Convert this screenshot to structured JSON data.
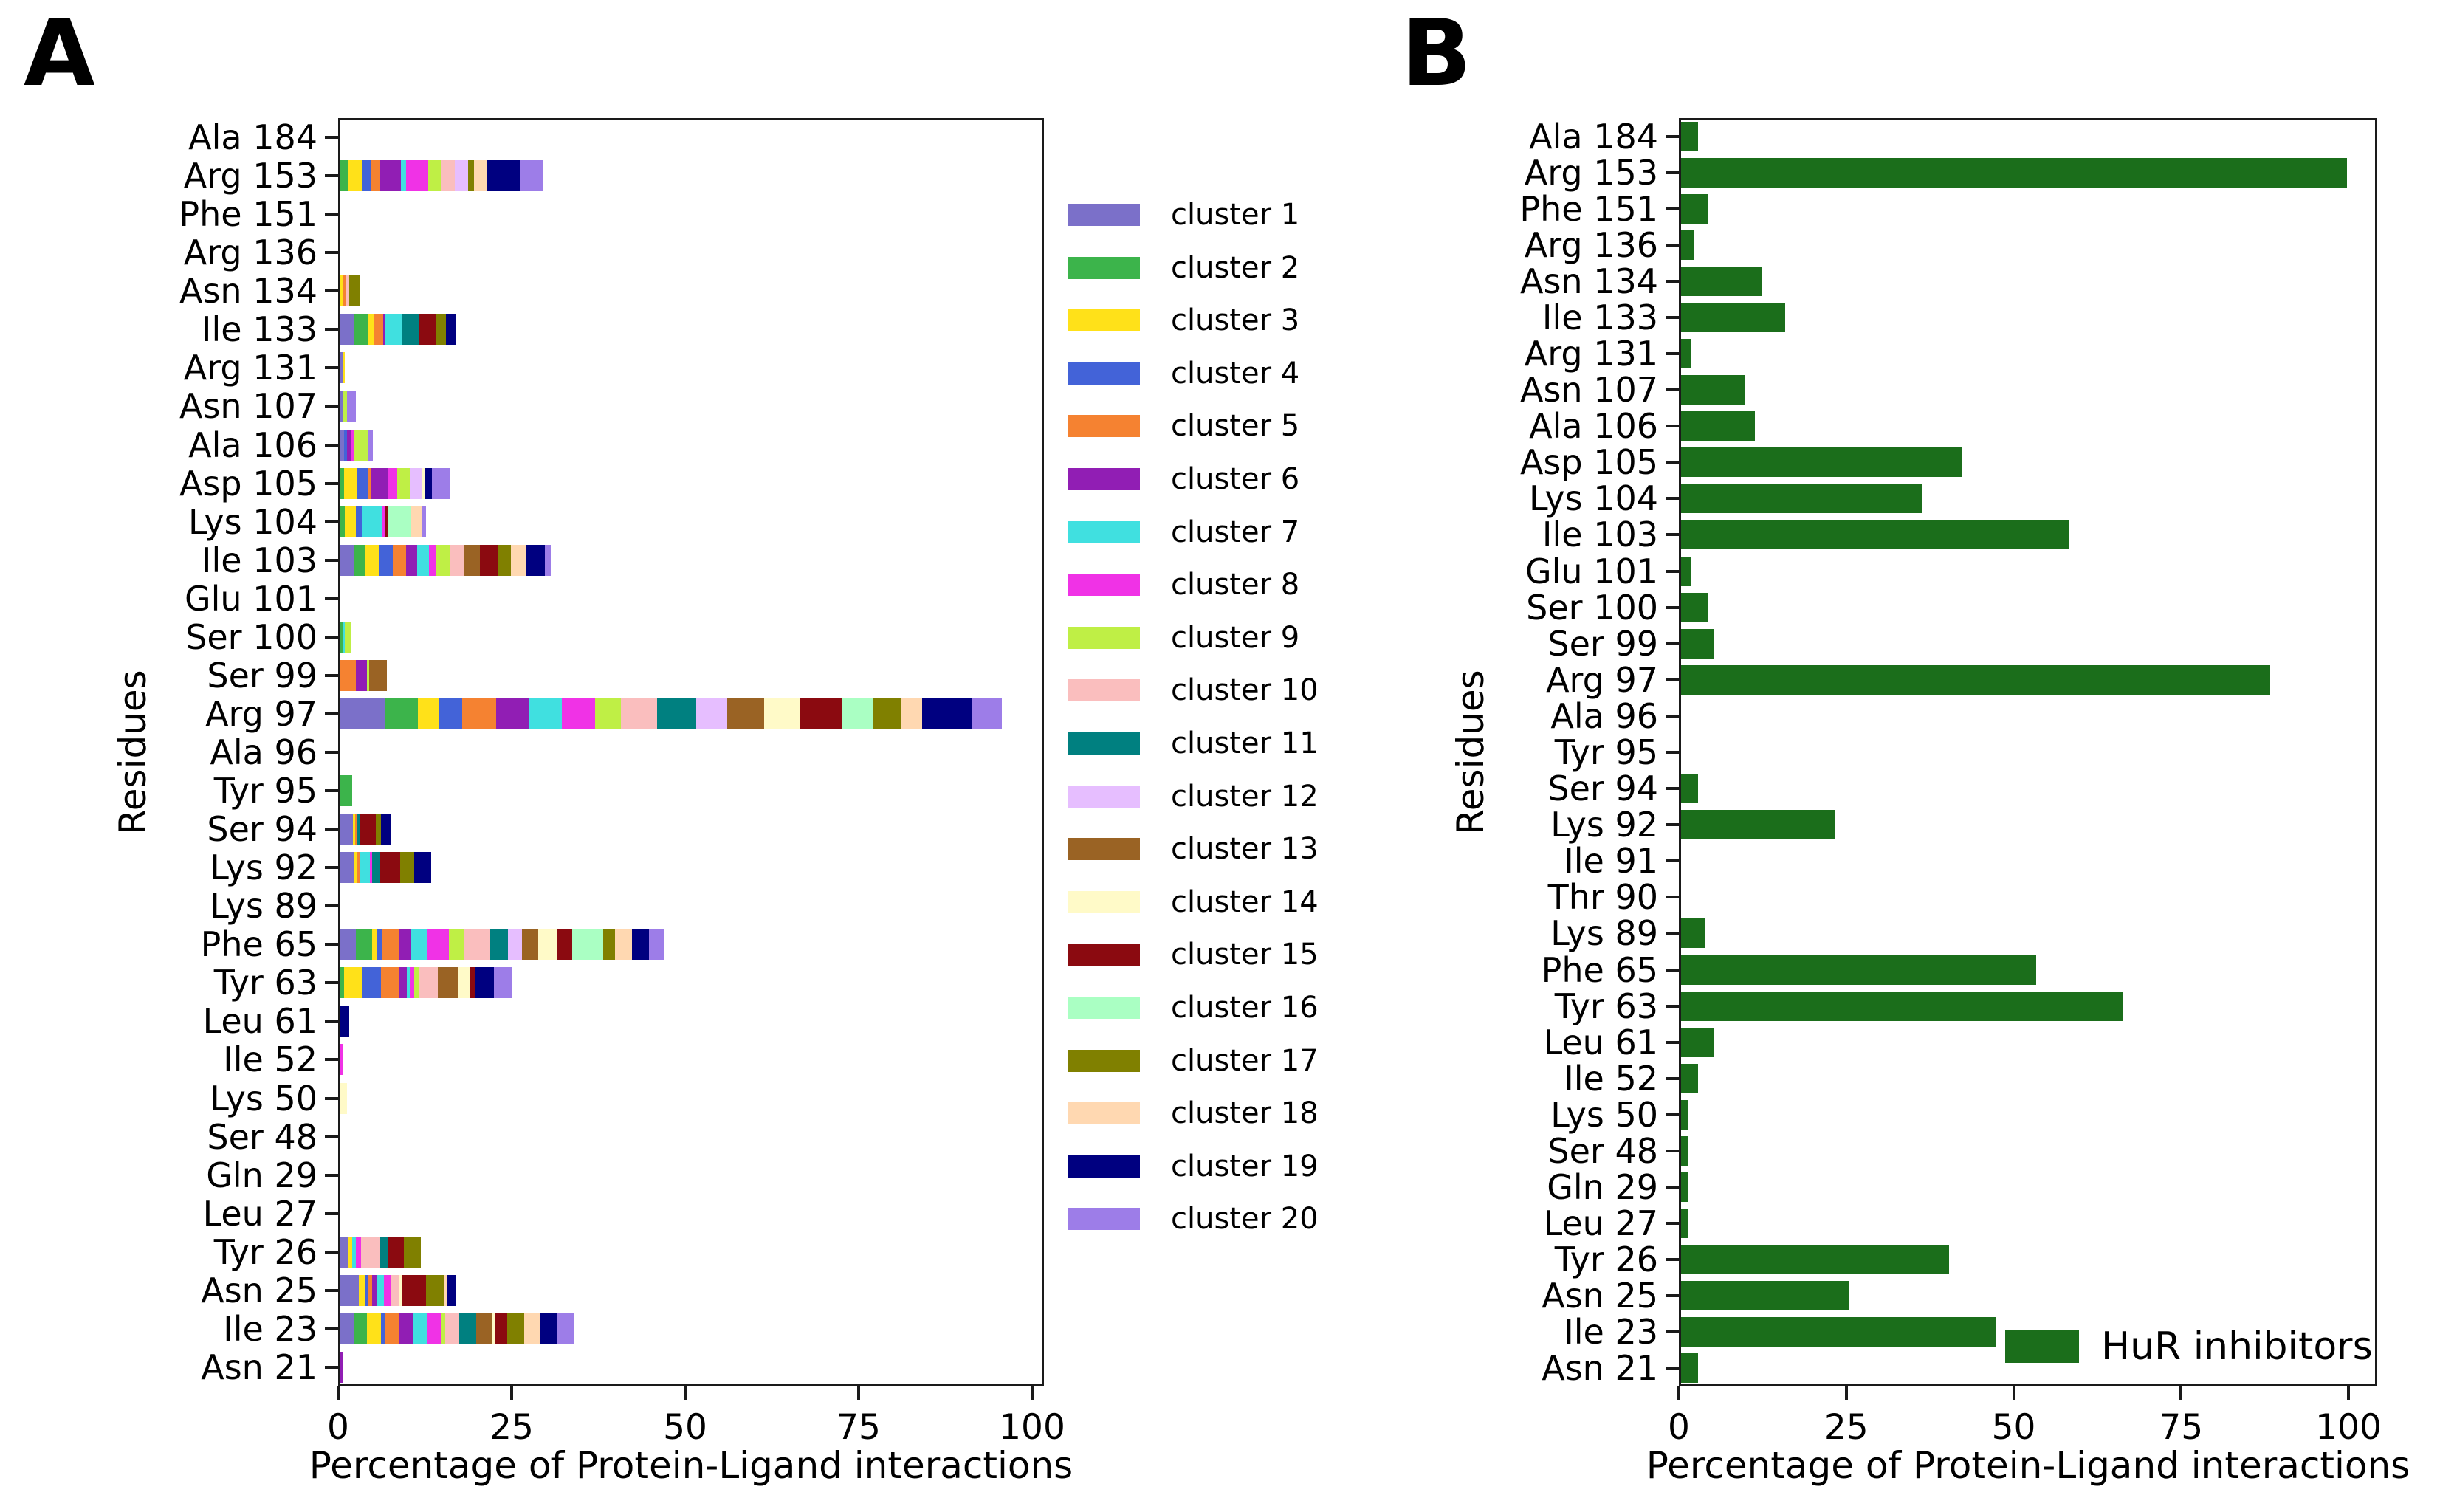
{
  "panel_a": {
    "letter": "A"
  },
  "panel_b": {
    "letter": "B"
  },
  "colors": {
    "clusters": [
      "#7b70c9",
      "#3cb44b",
      "#ffe119",
      "#4363d8",
      "#f58231",
      "#911eb4",
      "#40e0e0",
      "#f032e6",
      "#bfef45",
      "#fabebe",
      "#008080",
      "#e6beff",
      "#9a6324",
      "#fffac8",
      "#8b0a10",
      "#aaffc3",
      "#808000",
      "#ffd8b1",
      "#000080",
      "#9d7de8"
    ],
    "hur_bar": "#1b6e1b",
    "axis_line": "#1a1a1a"
  },
  "legend_a": {
    "items": [
      "cluster 1",
      "cluster 2",
      "cluster 3",
      "cluster 4",
      "cluster 5",
      "cluster 6",
      "cluster 7",
      "cluster 8",
      "cluster 9",
      "cluster 10",
      "cluster 11",
      "cluster 12",
      "cluster 13",
      "cluster 14",
      "cluster 15",
      "cluster 16",
      "cluster 17",
      "cluster 18",
      "cluster 19",
      "cluster 20"
    ]
  },
  "legend_b": {
    "label": "HuR inhibitors"
  },
  "chart_data": [
    {
      "type": "bar",
      "orientation": "horizontal",
      "stacked": true,
      "xlabel": "Percentage of Protein-Ligand interactions",
      "ylabel": "Residues",
      "xlim": [
        0,
        100
      ],
      "xticks": [
        0,
        25,
        50,
        75,
        100
      ],
      "grid": false,
      "legend_position": "right-of-plot",
      "series_labels": [
        "cluster 1",
        "cluster 2",
        "cluster 3",
        "cluster 4",
        "cluster 5",
        "cluster 6",
        "cluster 7",
        "cluster 8",
        "cluster 9",
        "cluster 10",
        "cluster 11",
        "cluster 12",
        "cluster 13",
        "cluster 14",
        "cluster 15",
        "cluster 16",
        "cluster 17",
        "cluster 18",
        "cluster 19",
        "cluster 20"
      ],
      "categories": [
        "Ala 184",
        "Arg 153",
        "Phe 151",
        "Arg 136",
        "Asn 134",
        "Ile 133",
        "Arg 131",
        "Asn 107",
        "Ala 106",
        "Asp 105",
        "Lys 104",
        "Ile 103",
        "Glu 101",
        "Ser 100",
        "Ser 99",
        "Arg 97",
        "Ala 96",
        "Tyr 95",
        "Ser 94",
        "Lys 92",
        "Lys 89",
        "Phe 65",
        "Tyr 63",
        "Leu 61",
        "Ile 52",
        "Lys 50",
        "Ser 48",
        "Gln 29",
        "Leu 27",
        "Tyr 26",
        "Asn 25",
        "Ile 23",
        "Asn 21"
      ],
      "segments_note": "each entry is [cluster_number, percent]",
      "values": [
        [],
        [
          [
            2,
            1.2
          ],
          [
            3,
            2.0
          ],
          [
            4,
            1.2
          ],
          [
            5,
            1.4
          ],
          [
            6,
            2.9
          ],
          [
            7,
            0.8
          ],
          [
            8,
            3.2
          ],
          [
            9,
            1.8
          ],
          [
            10,
            2.0
          ],
          [
            12,
            1.9
          ],
          [
            17,
            0.9
          ],
          [
            18,
            1.9
          ],
          [
            19,
            4.8
          ],
          [
            20,
            3.2
          ]
        ],
        [],
        [],
        [
          [
            3,
            0.4
          ],
          [
            5,
            0.5
          ],
          [
            10,
            0.4
          ],
          [
            17,
            1.6
          ]
        ],
        [
          [
            1,
            1.9
          ],
          [
            2,
            2.1
          ],
          [
            3,
            0.9
          ],
          [
            5,
            1.3
          ],
          [
            6,
            0.3
          ],
          [
            7,
            2.3
          ],
          [
            11,
            2.5
          ],
          [
            15,
            2.4
          ],
          [
            17,
            1.5
          ],
          [
            19,
            1.4
          ]
        ],
        [
          [
            1,
            0.3
          ],
          [
            3,
            0.3
          ]
        ],
        [
          [
            1,
            0.3
          ],
          [
            9,
            0.7
          ],
          [
            20,
            1.2
          ]
        ],
        [
          [
            1,
            0.5
          ],
          [
            4,
            0.5
          ],
          [
            6,
            0.5
          ],
          [
            8,
            0.5
          ],
          [
            9,
            2.0
          ],
          [
            20,
            0.7
          ]
        ],
        [
          [
            2,
            0.5
          ],
          [
            3,
            1.8
          ],
          [
            4,
            1.6
          ],
          [
            5,
            0.5
          ],
          [
            6,
            2.4
          ],
          [
            8,
            1.4
          ],
          [
            9,
            1.9
          ],
          [
            12,
            1.7
          ],
          [
            14,
            0.4
          ],
          [
            19,
            1.0
          ],
          [
            20,
            2.6
          ]
        ],
        [
          [
            2,
            0.6
          ],
          [
            3,
            1.6
          ],
          [
            4,
            0.9
          ],
          [
            7,
            3.0
          ],
          [
            8,
            0.3
          ],
          [
            15,
            0.4
          ],
          [
            16,
            3.4
          ],
          [
            18,
            1.5
          ],
          [
            20,
            0.6
          ]
        ],
        [
          [
            1,
            2.0
          ],
          [
            2,
            1.6
          ],
          [
            3,
            1.9
          ],
          [
            4,
            2.1
          ],
          [
            5,
            1.9
          ],
          [
            6,
            1.6
          ],
          [
            7,
            1.7
          ],
          [
            8,
            1.0
          ],
          [
            9,
            2.0
          ],
          [
            10,
            2.0
          ],
          [
            13,
            2.3
          ],
          [
            15,
            2.7
          ],
          [
            17,
            1.8
          ],
          [
            18,
            2.2
          ],
          [
            19,
            2.7
          ],
          [
            20,
            0.8
          ]
        ],
        [],
        [
          [
            2,
            0.3
          ],
          [
            7,
            0.3
          ],
          [
            9,
            0.9
          ]
        ],
        [
          [
            5,
            2.2
          ],
          [
            6,
            1.6
          ],
          [
            9,
            0.4
          ],
          [
            13,
            2.5
          ]
        ],
        [
          [
            1,
            6.5
          ],
          [
            2,
            4.7
          ],
          [
            3,
            2.9
          ],
          [
            4,
            3.5
          ],
          [
            5,
            4.9
          ],
          [
            6,
            4.7
          ],
          [
            7,
            4.7
          ],
          [
            8,
            4.8
          ],
          [
            9,
            3.7
          ],
          [
            10,
            5.2
          ],
          [
            11,
            5.7
          ],
          [
            12,
            4.5
          ],
          [
            13,
            5.3
          ],
          [
            14,
            5.1
          ],
          [
            15,
            6.1
          ],
          [
            16,
            4.5
          ],
          [
            17,
            4.1
          ],
          [
            18,
            2.9
          ],
          [
            19,
            7.3
          ],
          [
            20,
            4.2
          ]
        ],
        [],
        [
          [
            2,
            1.7
          ]
        ],
        [
          [
            1,
            1.8
          ],
          [
            3,
            0.3
          ],
          [
            5,
            0.3
          ],
          [
            11,
            0.5
          ],
          [
            15,
            2.2
          ],
          [
            17,
            0.8
          ],
          [
            19,
            1.3
          ]
        ],
        [
          [
            1,
            2.0
          ],
          [
            3,
            0.5
          ],
          [
            5,
            0.3
          ],
          [
            7,
            1.5
          ],
          [
            8,
            0.3
          ],
          [
            11,
            1.2
          ],
          [
            15,
            2.8
          ],
          [
            17,
            2.0
          ],
          [
            19,
            2.5
          ]
        ],
        [],
        [
          [
            1,
            2.2
          ],
          [
            2,
            2.4
          ],
          [
            3,
            0.7
          ],
          [
            4,
            0.7
          ],
          [
            5,
            2.5
          ],
          [
            6,
            1.7
          ],
          [
            7,
            2.2
          ],
          [
            8,
            3.2
          ],
          [
            9,
            2.2
          ],
          [
            10,
            3.8
          ],
          [
            11,
            2.6
          ],
          [
            12,
            2.0
          ],
          [
            13,
            2.3
          ],
          [
            14,
            2.7
          ],
          [
            15,
            2.2
          ],
          [
            16,
            4.5
          ],
          [
            17,
            1.7
          ],
          [
            18,
            2.4
          ],
          [
            19,
            2.5
          ],
          [
            20,
            2.2
          ]
        ],
        [
          [
            2,
            0.5
          ],
          [
            3,
            2.6
          ],
          [
            4,
            2.7
          ],
          [
            5,
            2.6
          ],
          [
            6,
            1.2
          ],
          [
            7,
            0.5
          ],
          [
            8,
            0.5
          ],
          [
            9,
            0.7
          ],
          [
            10,
            2.8
          ],
          [
            13,
            2.9
          ],
          [
            14,
            1.6
          ],
          [
            15,
            0.8
          ],
          [
            19,
            2.7
          ],
          [
            20,
            2.7
          ]
        ],
        [
          [
            19,
            1.3
          ]
        ],
        [
          [
            8,
            0.4
          ]
        ],
        [
          [
            14,
            1.0
          ]
        ],
        [],
        [],
        [],
        [
          [
            1,
            1.2
          ],
          [
            3,
            0.5
          ],
          [
            7,
            0.5
          ],
          [
            8,
            0.8
          ],
          [
            10,
            2.7
          ],
          [
            11,
            1.1
          ],
          [
            15,
            2.4
          ],
          [
            17,
            2.4
          ]
        ],
        [
          [
            1,
            2.7
          ],
          [
            3,
            0.9
          ],
          [
            4,
            0.4
          ],
          [
            5,
            0.6
          ],
          [
            6,
            0.6
          ],
          [
            7,
            1.1
          ],
          [
            8,
            1.1
          ],
          [
            10,
            1.1
          ],
          [
            14,
            0.4
          ],
          [
            15,
            3.4
          ],
          [
            17,
            2.6
          ],
          [
            18,
            0.5
          ],
          [
            19,
            1.3
          ]
        ],
        [
          [
            1,
            1.9
          ],
          [
            2,
            1.9
          ],
          [
            3,
            2.1
          ],
          [
            4,
            0.6
          ],
          [
            5,
            2.0
          ],
          [
            6,
            1.9
          ],
          [
            7,
            2.0
          ],
          [
            8,
            2.1
          ],
          [
            9,
            0.6
          ],
          [
            10,
            2.0
          ],
          [
            11,
            2.5
          ],
          [
            13,
            2.3
          ],
          [
            14,
            0.5
          ],
          [
            15,
            1.6
          ],
          [
            17,
            2.5
          ],
          [
            18,
            2.2
          ],
          [
            19,
            2.6
          ],
          [
            20,
            2.3
          ]
        ],
        [
          [
            6,
            0.3
          ]
        ]
      ]
    },
    {
      "type": "bar",
      "orientation": "horizontal",
      "stacked": false,
      "xlabel": "Percentage of Protein-Ligand interactions",
      "ylabel": "Residues",
      "xlim": [
        0,
        100
      ],
      "xticks": [
        0,
        25,
        50,
        75,
        100
      ],
      "grid": false,
      "legend": "HuR inhibitors",
      "bar_color": "#1b6e1b",
      "categories": [
        "Ala 184",
        "Arg 153",
        "Phe 151",
        "Arg 136",
        "Asn 134",
        "Ile 133",
        "Arg 131",
        "Asn 107",
        "Ala 106",
        "Asp 105",
        "Lys 104",
        "Ile 103",
        "Glu 101",
        "Ser 100",
        "Ser 99",
        "Arg 97",
        "Ala 96",
        "Tyr 95",
        "Ser 94",
        "Lys 92",
        "Ile 91",
        "Thr 90",
        "Lys 89",
        "Phe 65",
        "Tyr 63",
        "Leu 61",
        "Ile 52",
        "Lys 50",
        "Ser 48",
        "Gln 29",
        "Leu 27",
        "Tyr 26",
        "Asn 25",
        "Ile 23",
        "Asn 21"
      ],
      "values": [
        2.5,
        99.5,
        4,
        2,
        12,
        15.5,
        1.5,
        9.5,
        11,
        42,
        36,
        58,
        1.5,
        4,
        5,
        88,
        0,
        0,
        2.5,
        23,
        0,
        0,
        3.5,
        53,
        66,
        5,
        2.5,
        1,
        1,
        1,
        1,
        40,
        25,
        47,
        2.5
      ]
    }
  ]
}
